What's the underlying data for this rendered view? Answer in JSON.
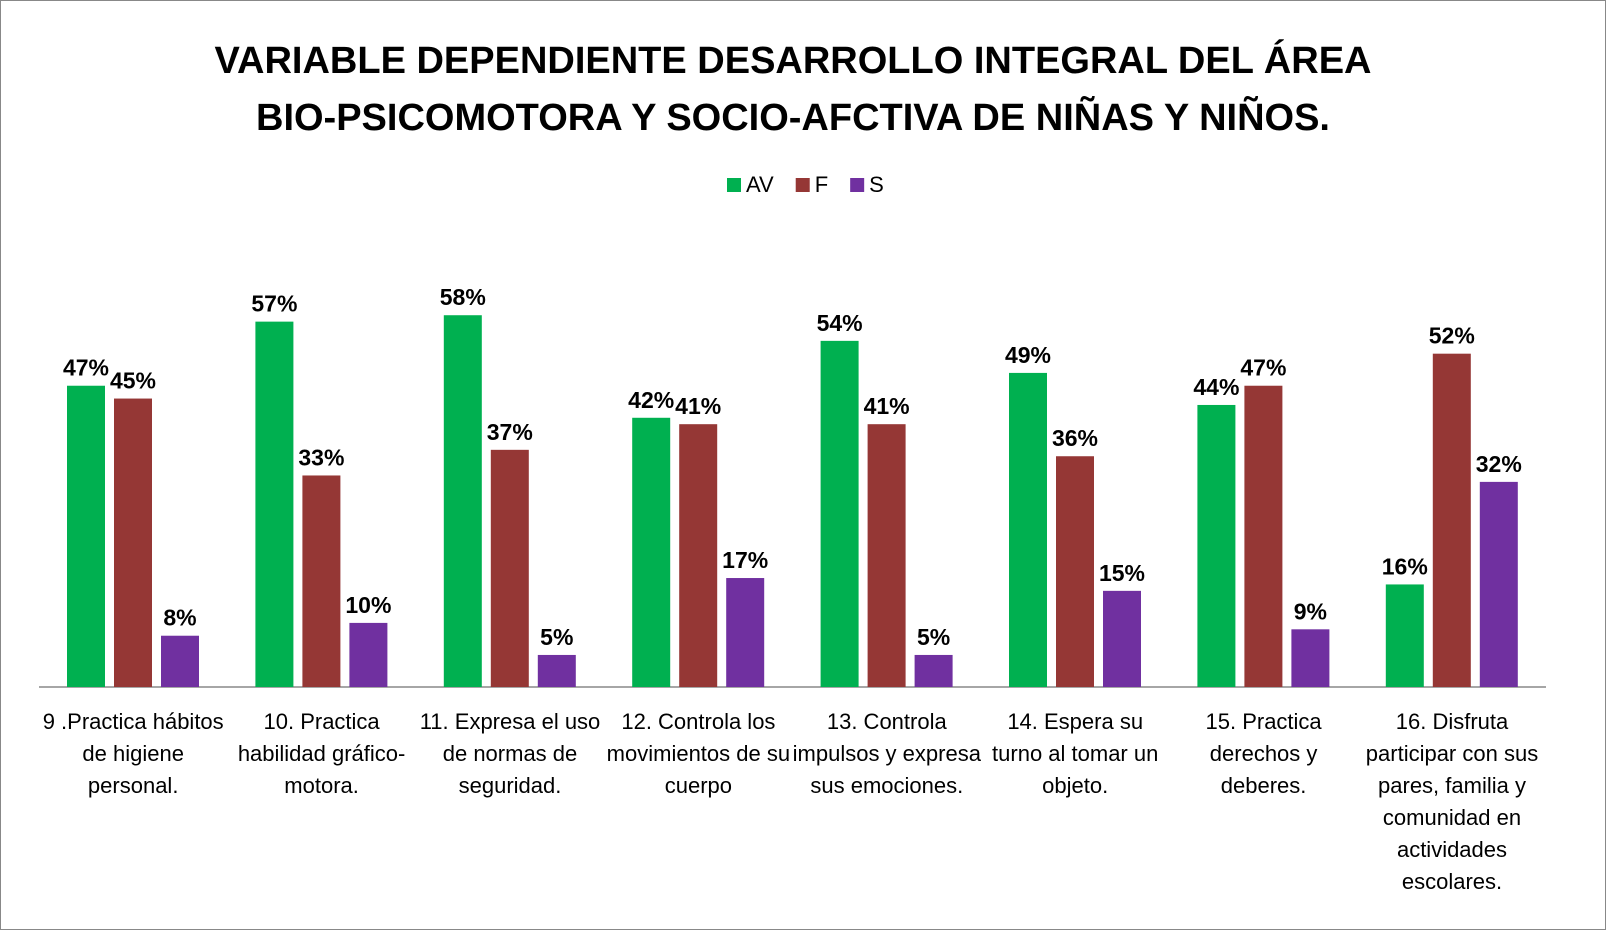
{
  "chart_data": {
    "type": "bar",
    "title": [
      "VARIABLE DEPENDIENTE DESARROLLO INTEGRAL DEL ÁREA",
      "BIO-PSICOMOTORA Y SOCIO-AFCTIVA DE NIÑAS Y NIÑOS."
    ],
    "categories": [
      "9 .Practica hábitos de higiene personal.",
      "10. Practica habilidad gráfico-motora.",
      "11. Expresa el uso de normas de seguridad.",
      "12. Controla los movimientos de su cuerpo",
      "13. Controla impulsos y expresa sus emociones.",
      "14. Espera su turno al tomar un objeto.",
      "15. Practica derechos y deberes.",
      "16. Disfruta participar  con sus pares, familia y comunidad en actividades escolares."
    ],
    "series": [
      {
        "name": "AV",
        "color": "#00b050",
        "values": [
          47,
          57,
          58,
          42,
          54,
          49,
          44,
          16
        ],
        "value_labels": [
          "47%",
          "57%",
          "58%",
          "42%",
          "54%",
          "49%",
          "44%",
          "16%"
        ]
      },
      {
        "name": "F",
        "color": "#953735",
        "values": [
          45,
          33,
          37,
          41,
          41,
          36,
          47,
          52
        ],
        "value_labels": [
          "45%",
          "33%",
          "37%",
          "41%",
          "41%",
          "36%",
          "47%",
          "52%"
        ]
      },
      {
        "name": "S",
        "color": "#7030a0",
        "values": [
          8,
          10,
          5,
          17,
          5,
          15,
          9,
          32
        ],
        "value_labels": [
          "8%",
          "10%",
          "5%",
          "17%",
          "5%",
          "15%",
          "9%",
          "32%"
        ]
      }
    ],
    "legend": "top"
  }
}
